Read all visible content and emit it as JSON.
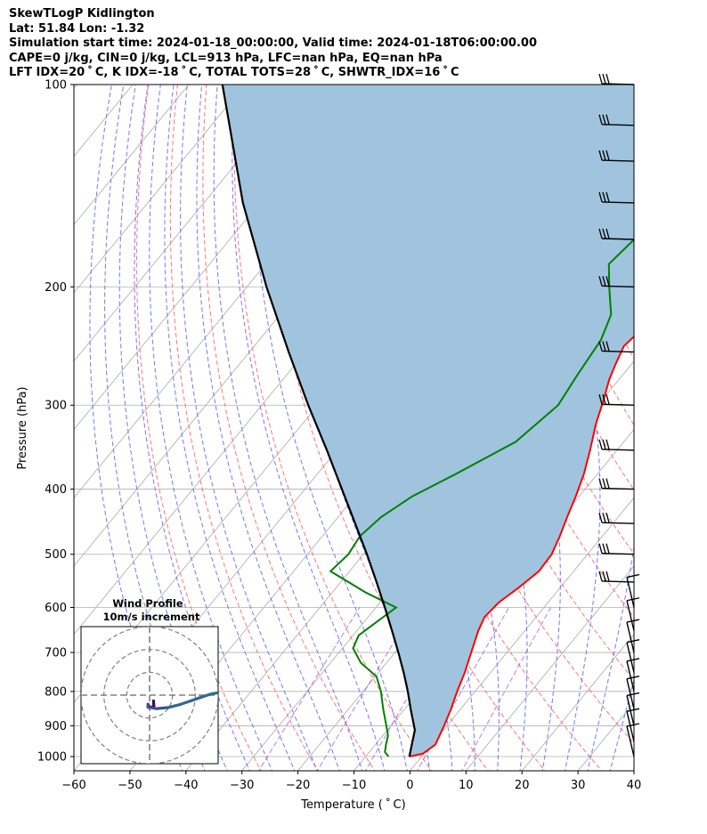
{
  "header": {
    "line1": "SkewTLogP Kidlington",
    "line2": "Lat: 51.84   Lon: -1.32",
    "line3": "Simulation start time: 2024-01-18_00:00:00, Valid time: 2024-01-18T06:00:00.00",
    "line4": "CAPE=0 j/kg, CIN=0 j/kg, LCL=913 hPa, LFC=nan hPa, EQ=nan hPa",
    "line5": "LFT IDX=20 ˚ C, K IDX=-18 ˚ C, TOTAL TOTS=28 ˚ C, SHWTR_IDX=16 ˚ C"
  },
  "colors": {
    "temperature": "#ff0000",
    "dewpoint": "#008000",
    "parcel": "#000000",
    "shading": "#a0c4de",
    "dry_adiabat": "#ff6666",
    "moist_adiabat": "#6666ff",
    "mixing_ratio": "#9933cc",
    "isotherm": "#aaaaaa"
  },
  "chart_data": {
    "type": "line",
    "title": "SkewTLogP Kidlington",
    "xlabel": "Temperature ( ˚ C)",
    "ylabel": "Pressure (hPa)",
    "xlim": [
      -60,
      40
    ],
    "ylim": [
      1050,
      100
    ],
    "y_scale": "log",
    "grid": true,
    "xticks": [
      -60,
      -50,
      -40,
      -30,
      -20,
      -10,
      0,
      10,
      20,
      30,
      40
    ],
    "xtick_labels": [
      "−60",
      "−50",
      "−40",
      "−30",
      "−20",
      "−10",
      "0",
      "10",
      "20",
      "30",
      "40"
    ],
    "yticks": [
      1000,
      900,
      800,
      700,
      600,
      500,
      400,
      300,
      200,
      100
    ],
    "series": [
      {
        "role": "temperature",
        "points": [
          [
            1000,
            -2.2
          ],
          [
            990,
            -0.2
          ],
          [
            960,
            0.7
          ],
          [
            900,
            -0.5
          ],
          [
            850,
            -1.7
          ],
          [
            800,
            -3.2
          ],
          [
            750,
            -4.6
          ],
          [
            700,
            -6.4
          ],
          [
            650,
            -8.3
          ],
          [
            620,
            -9.2
          ],
          [
            590,
            -8.8
          ],
          [
            560,
            -7.4
          ],
          [
            530,
            -6.2
          ],
          [
            500,
            -6.4
          ],
          [
            470,
            -7.6
          ],
          [
            440,
            -9.1
          ],
          [
            410,
            -10.6
          ],
          [
            380,
            -12.4
          ],
          [
            350,
            -14.8
          ],
          [
            320,
            -17.6
          ],
          [
            295,
            -19.7
          ],
          [
            275,
            -21.7
          ],
          [
            260,
            -22.9
          ],
          [
            245,
            -24.0
          ],
          [
            230,
            -23.2
          ],
          [
            220,
            -20.8
          ],
          [
            200,
            -18.4
          ],
          [
            185,
            -20.1
          ],
          [
            170,
            -22.3
          ],
          [
            150,
            -23.8
          ],
          [
            130,
            -25.3
          ],
          [
            115,
            -28.8
          ],
          [
            100,
            -33.2
          ]
        ]
      },
      {
        "role": "dewpoint",
        "points": [
          [
            1000,
            -5.9
          ],
          [
            985,
            -7.2
          ],
          [
            960,
            -8.1
          ],
          [
            930,
            -9.1
          ],
          [
            900,
            -10.8
          ],
          [
            850,
            -13.8
          ],
          [
            800,
            -16.8
          ],
          [
            760,
            -19.8
          ],
          [
            725,
            -24.6
          ],
          [
            690,
            -28.1
          ],
          [
            660,
            -29.0
          ],
          [
            600,
            -26.4
          ],
          [
            570,
            -34.0
          ],
          [
            530,
            -43.4
          ],
          [
            500,
            -42.7
          ],
          [
            470,
            -43.3
          ],
          [
            440,
            -42.3
          ],
          [
            410,
            -39.8
          ],
          [
            380,
            -35.3
          ],
          [
            340,
            -29.3
          ],
          [
            300,
            -27.1
          ],
          [
            270,
            -28.1
          ],
          [
            240,
            -29.0
          ],
          [
            220,
            -30.9
          ],
          [
            200,
            -35.3
          ],
          [
            185,
            -38.7
          ],
          [
            170,
            -37.8
          ],
          [
            150,
            -38.2
          ],
          [
            130,
            -38.8
          ],
          [
            110,
            -40.3
          ],
          [
            100,
            -41.3
          ]
        ]
      },
      {
        "role": "parcel",
        "points": [
          [
            1000,
            -2.2
          ],
          [
            913,
            -5.1
          ],
          [
            850,
            -8.9
          ],
          [
            800,
            -12.0
          ],
          [
            750,
            -15.5
          ],
          [
            700,
            -19.4
          ],
          [
            650,
            -23.7
          ],
          [
            600,
            -28.4
          ],
          [
            550,
            -33.6
          ],
          [
            500,
            -39.4
          ],
          [
            450,
            -46.0
          ],
          [
            400,
            -53.4
          ],
          [
            350,
            -61.8
          ],
          [
            300,
            -71.7
          ],
          [
            250,
            -83.0
          ],
          [
            200,
            -96.5
          ],
          [
            150,
            -113.0
          ],
          [
            100,
            -134.0
          ]
        ]
      }
    ],
    "wind_barbs_pressure": [
      1000,
      950,
      900,
      850,
      800,
      750,
      700,
      650,
      600,
      550,
      500,
      450,
      400,
      350,
      300,
      250,
      200,
      170,
      150,
      130,
      115,
      100
    ],
    "inset": {
      "type": "hodograph",
      "title": "Wind Profile",
      "subtitle": "10m/s increment",
      "rings_ms": [
        10,
        20,
        30
      ],
      "range_ms": 30,
      "trace": [
        [
          1.7,
          -2.5
        ],
        [
          1.9,
          -5.0
        ],
        [
          0.0,
          -5.4
        ],
        [
          -0.7,
          -4.0
        ],
        [
          -0.7,
          -5.3
        ],
        [
          3.1,
          -5.9
        ],
        [
          8.3,
          -5.4
        ],
        [
          13.3,
          -4.1
        ],
        [
          18.1,
          -2.5
        ],
        [
          22.6,
          -0.9
        ],
        [
          26.9,
          0.5
        ],
        [
          30.6,
          1.2
        ]
      ]
    }
  }
}
